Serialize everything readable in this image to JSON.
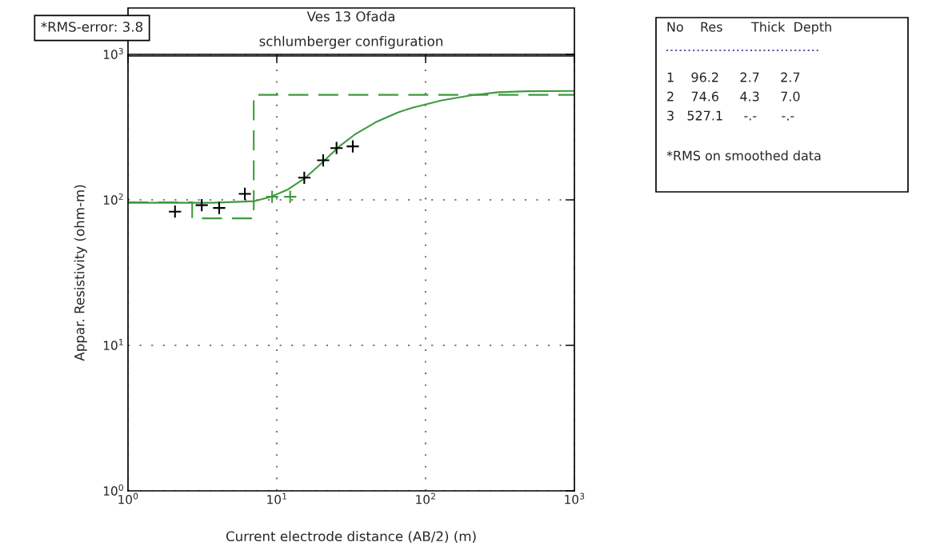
{
  "chart_data": {
    "type": "line",
    "title": "Ves 13 Ofada",
    "subtitle": "schlumberger configuration",
    "xlabel": "Current electrode distance (AB/2) (m)",
    "ylabel": "Appar. Resistivity (ohm-m)",
    "log": "xy",
    "grid": true,
    "xlim": [
      1,
      1000
    ],
    "ylim": [
      1,
      1000
    ],
    "xticks": [
      {
        "value": 1,
        "label": "10$^{0}$"
      },
      {
        "value": 10,
        "label": "10$^{1}$"
      },
      {
        "value": 100,
        "label": "10$^{2}$"
      },
      {
        "value": 1000,
        "label": "10$^{3}$"
      }
    ],
    "yticks": [
      {
        "value": 1,
        "label": "10$^{0}$"
      },
      {
        "value": 10,
        "label": "10$^{1}$"
      },
      {
        "value": 100,
        "label": "10$^{2}$"
      },
      {
        "value": 1000,
        "label": "10$^{3}$"
      }
    ],
    "series": [
      {
        "type": "step",
        "color": "#3f9a3f",
        "line_style": "dashed",
        "marker": "none",
        "x": [
          1,
          2.7,
          7.0,
          1000
        ],
        "values": [
          96.2,
          74.6,
          527.1,
          527.1
        ]
      },
      {
        "color": "#3f9a3f",
        "line_style": "solid",
        "marker": "none",
        "x": [
          1,
          3.77,
          7.1,
          9.1,
          11.9,
          15.3,
          19.9,
          25.9,
          33.7,
          46,
          65.5,
          81.7,
          127,
          198,
          308,
          480,
          1000
        ],
        "values": [
          95.5,
          95.5,
          98,
          105,
          118,
          140,
          178,
          230,
          283,
          341,
          400,
          430,
          482,
          521,
          549,
          558,
          561
        ]
      },
      {
        "type": "scatter",
        "color": "#000000",
        "marker": "cross",
        "x": [
          2.07,
          3.13,
          4.1,
          6.1,
          15.3,
          20.5,
          25.2,
          32.4
        ],
        "values": [
          83,
          92,
          88,
          110,
          142,
          187,
          227,
          233
        ]
      },
      {
        "type": "scatter",
        "color": "#3f9a3f",
        "marker": "cross",
        "x": [
          9.3,
          12.3
        ],
        "values": [
          105,
          105
        ]
      }
    ],
    "annotations": [
      "*RMS-error: 3.8",
      "No    Res       Thick  Depth",
      "1    96.2     2.7     2.7",
      "2    74.6     4.3     7.0",
      "3   527.1     -.-      -.-",
      "*RMS on smoothed data"
    ]
  }
}
